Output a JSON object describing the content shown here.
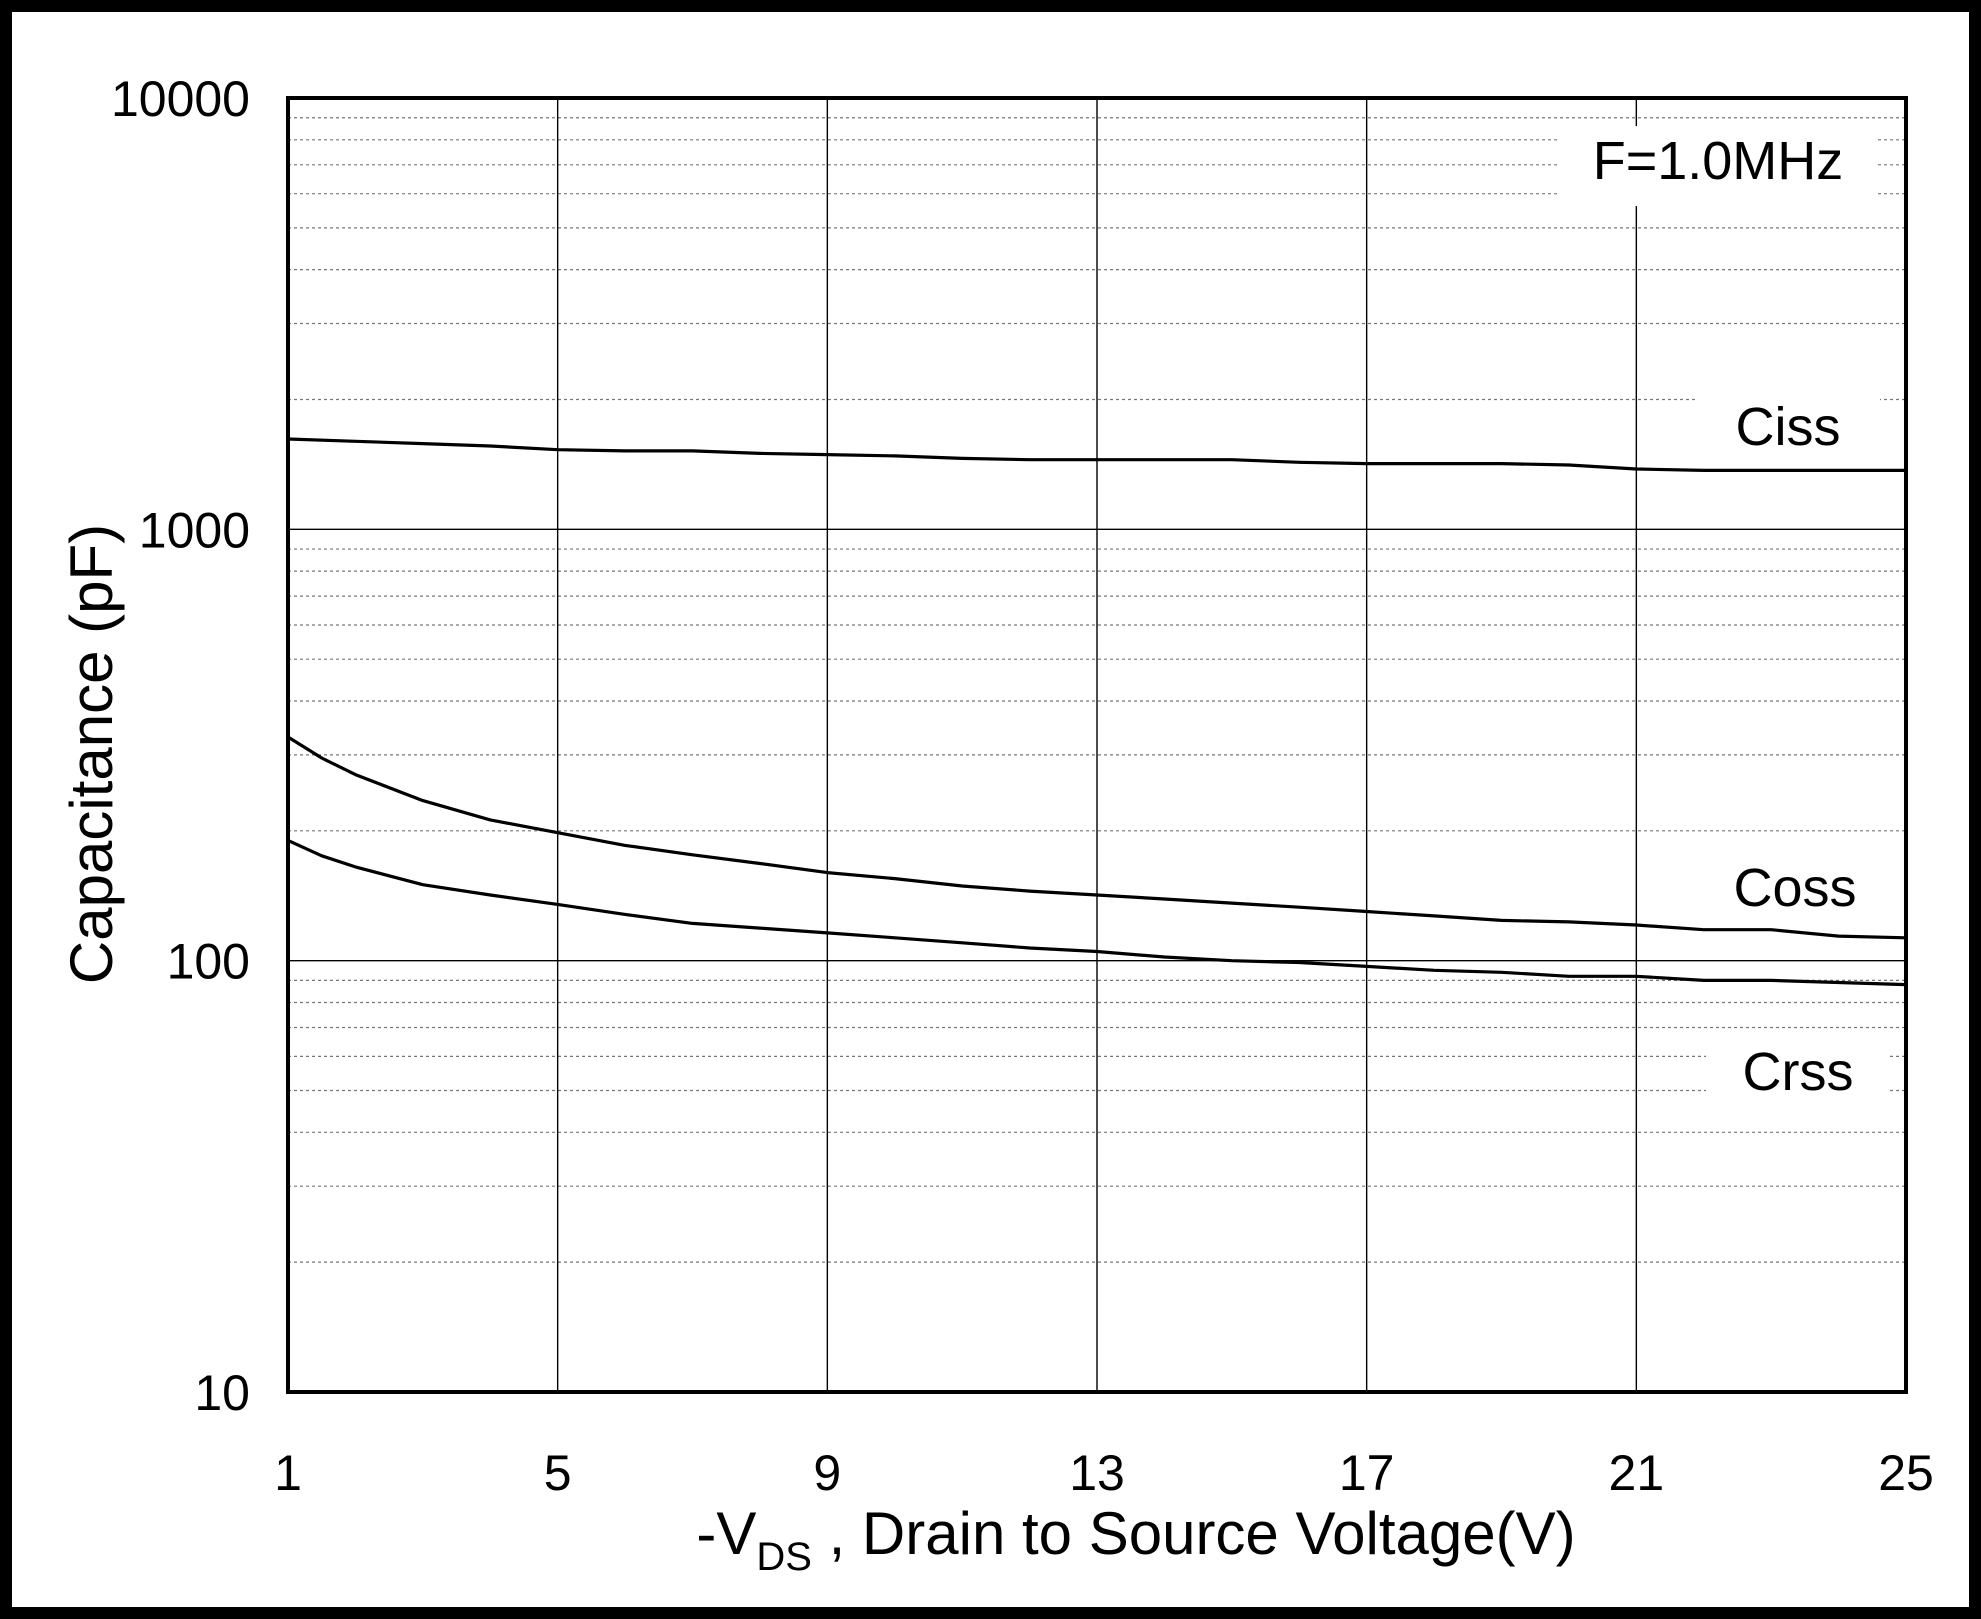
{
  "chart_data": {
    "type": "line",
    "annotation": "F=1.0MHz",
    "xlabel_prefix": "-V",
    "xlabel_subscript": "DS",
    "xlabel_suffix": " , Drain to Source Voltage(V)",
    "ylabel": "Capacitance (pF)",
    "xlim": [
      1,
      25
    ],
    "ylim": [
      10,
      10000
    ],
    "yscale": "log",
    "grid": true,
    "x_ticks": [
      1,
      5,
      9,
      13,
      17,
      21,
      25
    ],
    "x_tick_labels": [
      "1",
      "5",
      "9",
      "13",
      "17",
      "21",
      "25"
    ],
    "y_ticks": [
      10,
      100,
      1000,
      10000
    ],
    "y_tick_labels": [
      "10",
      "100",
      "1000",
      "10000"
    ],
    "series": [
      {
        "name": "Ciss",
        "label": "Ciss",
        "x": [
          1,
          2,
          3,
          4,
          5,
          6,
          7,
          8,
          9,
          10,
          11,
          12,
          13,
          14,
          15,
          16,
          17,
          18,
          19,
          20,
          21,
          22,
          23,
          24,
          25
        ],
        "y": [
          1620,
          1600,
          1580,
          1560,
          1530,
          1520,
          1520,
          1500,
          1490,
          1480,
          1460,
          1450,
          1450,
          1450,
          1450,
          1430,
          1420,
          1420,
          1420,
          1410,
          1380,
          1370,
          1370,
          1370,
          1370
        ]
      },
      {
        "name": "Coss",
        "label": "Coss",
        "x": [
          1,
          1.5,
          2,
          3,
          4,
          5,
          6,
          7,
          8,
          9,
          10,
          11,
          12,
          13,
          14,
          15,
          16,
          17,
          18,
          19,
          20,
          21,
          22,
          23,
          24,
          25
        ],
        "y": [
          330,
          295,
          270,
          235,
          212,
          198,
          185,
          176,
          168,
          160,
          155,
          149,
          145,
          142,
          139,
          136,
          133,
          130,
          127,
          124,
          123,
          121,
          118,
          118,
          114,
          113
        ]
      },
      {
        "name": "Crss",
        "label": "Crss",
        "x": [
          1,
          1.5,
          2,
          3,
          4,
          5,
          6,
          7,
          8,
          9,
          10,
          11,
          12,
          13,
          14,
          15,
          16,
          17,
          18,
          19,
          20,
          21,
          22,
          23,
          24,
          25
        ],
        "y": [
          190,
          175,
          165,
          150,
          142,
          135,
          128,
          122,
          119,
          116,
          113,
          110,
          107,
          105,
          102,
          100,
          99,
          97,
          95,
          94,
          92,
          92,
          90,
          90,
          89,
          88
        ]
      }
    ]
  }
}
